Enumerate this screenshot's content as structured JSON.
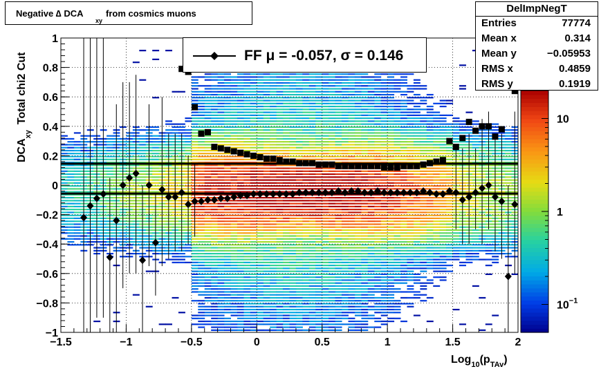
{
  "title": {
    "main": "Negative ∆ DCA",
    "subscript": "xy",
    "suffix": "from cosmics muons"
  },
  "stats_box": {
    "name": "DelImpNegT",
    "rows": [
      {
        "label": "Entries",
        "value": "77774"
      },
      {
        "label": "Mean x",
        "value": "0.314"
      },
      {
        "label": "Mean y",
        "value": "−0.05953"
      },
      {
        "label": "RMS x",
        "value": "0.4859"
      },
      {
        "label": "RMS y",
        "value": "0.1919"
      }
    ]
  },
  "legend": {
    "label": "FF μ = -0.057, σ =   0.146",
    "marker": "diamond"
  },
  "colors": {
    "frame": "#000000",
    "grid": "#000000",
    "marker": "#000000"
  },
  "chart_data": {
    "type": "heatmap",
    "xlabel": "Log",
    "xlabel_sub": "10",
    "xlabel_rest": "(p",
    "xlabel_sub2": "TAv",
    "xlabel_end": ")",
    "ylabel": "DCA",
    "ylabel_sub": "xy",
    "ylabel_suffix": "Total chi2 Cut",
    "xlim": [
      -1.5,
      2.0
    ],
    "ylim": [
      -1.0,
      1.0
    ],
    "xticks": [
      -1.5,
      -1,
      -0.5,
      0,
      0.5,
      1,
      1.5,
      2
    ],
    "xtick_labels": [
      "−1.5",
      "−1",
      "−0.5",
      "0",
      "0.5",
      "1",
      "1.5",
      "2"
    ],
    "yticks": [
      -1,
      -0.8,
      -0.6,
      -0.4,
      -0.2,
      0,
      0.2,
      0.4,
      0.6,
      0.8,
      1
    ],
    "ytick_labels": [
      "−1",
      "−0.8",
      "−0.6",
      "−0.4",
      "−0.2",
      "0",
      "0.2",
      "0.4",
      "0.6",
      "0.8",
      "1"
    ],
    "grid": true,
    "colorbar": {
      "scale": "log",
      "range": [
        0.05,
        20
      ],
      "ticks": [
        {
          "value": 10,
          "label": "10",
          "sup": ""
        },
        {
          "value": 1,
          "label": "1",
          "sup": ""
        },
        {
          "value": 0.1,
          "label": "10",
          "sup": "−1"
        }
      ]
    },
    "lines": [
      {
        "name": "sigma",
        "y": 0.146
      },
      {
        "name": "mu",
        "y": -0.057
      }
    ],
    "mean_profile": [
      {
        "x": -1.325,
        "y": -0.22
      },
      {
        "x": -1.275,
        "y": -0.14
      },
      {
        "x": -1.225,
        "y": -0.09
      },
      {
        "x": -1.175,
        "y": -0.06
      },
      {
        "x": -1.125,
        "y": -0.49
      },
      {
        "x": -1.075,
        "y": -0.24
      },
      {
        "x": -1.025,
        "y": 0.0
      },
      {
        "x": -0.975,
        "y": 0.05
      },
      {
        "x": -0.925,
        "y": 0.08
      },
      {
        "x": -0.875,
        "y": -0.51
      },
      {
        "x": -0.825,
        "y": 0.0
      },
      {
        "x": -0.775,
        "y": -0.39
      },
      {
        "x": -0.725,
        "y": -0.03
      },
      {
        "x": -0.675,
        "y": -0.08
      },
      {
        "x": -0.625,
        "y": -0.08
      },
      {
        "x": -0.575,
        "y": -0.05
      },
      {
        "x": -0.525,
        "y": -0.13
      },
      {
        "x": -0.475,
        "y": -0.11
      },
      {
        "x": -0.425,
        "y": -0.11
      },
      {
        "x": -0.375,
        "y": -0.1
      },
      {
        "x": -0.325,
        "y": -0.1
      },
      {
        "x": -0.275,
        "y": -0.09
      },
      {
        "x": -0.225,
        "y": -0.09
      },
      {
        "x": -0.175,
        "y": -0.08
      },
      {
        "x": -0.125,
        "y": -0.07
      },
      {
        "x": -0.075,
        "y": -0.07
      },
      {
        "x": -0.025,
        "y": -0.06
      },
      {
        "x": 0.025,
        "y": -0.06
      },
      {
        "x": 0.075,
        "y": -0.06
      },
      {
        "x": 0.125,
        "y": -0.06
      },
      {
        "x": 0.175,
        "y": -0.06
      },
      {
        "x": 0.225,
        "y": -0.06
      },
      {
        "x": 0.275,
        "y": -0.06
      },
      {
        "x": 0.325,
        "y": -0.05
      },
      {
        "x": 0.375,
        "y": -0.05
      },
      {
        "x": 0.425,
        "y": -0.05
      },
      {
        "x": 0.475,
        "y": -0.05
      },
      {
        "x": 0.525,
        "y": -0.05
      },
      {
        "x": 0.575,
        "y": -0.05
      },
      {
        "x": 0.625,
        "y": -0.04
      },
      {
        "x": 0.675,
        "y": -0.05
      },
      {
        "x": 0.725,
        "y": -0.04
      },
      {
        "x": 0.775,
        "y": -0.04
      },
      {
        "x": 0.825,
        "y": -0.05
      },
      {
        "x": 0.875,
        "y": -0.05
      },
      {
        "x": 0.925,
        "y": -0.04
      },
      {
        "x": 0.975,
        "y": -0.05
      },
      {
        "x": 1.025,
        "y": -0.05
      },
      {
        "x": 1.075,
        "y": -0.05
      },
      {
        "x": 1.125,
        "y": -0.05
      },
      {
        "x": 1.175,
        "y": -0.05
      },
      {
        "x": 1.225,
        "y": -0.05
      },
      {
        "x": 1.275,
        "y": -0.04
      },
      {
        "x": 1.325,
        "y": -0.05
      },
      {
        "x": 1.375,
        "y": -0.06
      },
      {
        "x": 1.425,
        "y": -0.06
      },
      {
        "x": 1.475,
        "y": -0.04
      },
      {
        "x": 1.525,
        "y": -0.05
      },
      {
        "x": 1.575,
        "y": -0.1
      },
      {
        "x": 1.625,
        "y": -0.08
      },
      {
        "x": 1.675,
        "y": -0.05
      },
      {
        "x": 1.725,
        "y": -0.02
      },
      {
        "x": 1.775,
        "y": 0.0
      },
      {
        "x": 1.825,
        "y": -0.08
      },
      {
        "x": 1.875,
        "y": -0.11
      },
      {
        "x": 1.925,
        "y": -0.62
      },
      {
        "x": 1.975,
        "y": -0.13
      }
    ],
    "error_bars": [
      {
        "x": -1.325,
        "lo": -1.0,
        "hi": 1.0
      },
      {
        "x": -1.275,
        "lo": -1.0,
        "hi": 1.0
      },
      {
        "x": -1.225,
        "lo": -0.9,
        "hi": 1.0
      },
      {
        "x": -1.175,
        "lo": -0.9,
        "hi": 1.0
      },
      {
        "x": -1.125,
        "lo": -1.0,
        "hi": 0.05
      },
      {
        "x": -1.075,
        "lo": -1.0,
        "hi": 0.55
      },
      {
        "x": -1.025,
        "lo": -0.7,
        "hi": 0.7
      },
      {
        "x": -0.975,
        "lo": -0.6,
        "hi": 0.7
      },
      {
        "x": -0.925,
        "lo": -0.6,
        "hi": 0.75
      },
      {
        "x": -0.875,
        "lo": -1.0,
        "hi": 0.0
      },
      {
        "x": -0.825,
        "lo": -0.55,
        "hi": 0.55
      },
      {
        "x": -0.775,
        "lo": -0.75,
        "hi": -0.05
      },
      {
        "x": -0.725,
        "lo": -0.55,
        "hi": 0.6
      },
      {
        "x": -0.675,
        "lo": -0.5,
        "hi": 0.35
      },
      {
        "x": -0.625,
        "lo": -0.45,
        "hi": 0.35
      },
      {
        "x": -0.575,
        "lo": -0.45,
        "hi": 0.35
      },
      {
        "x": -0.525,
        "lo": -0.4,
        "hi": 0.2
      },
      {
        "x": -0.475,
        "lo": -0.35,
        "hi": 0.15
      },
      {
        "x": 1.525,
        "lo": -0.3,
        "hi": 0.25
      },
      {
        "x": 1.575,
        "lo": -0.4,
        "hi": 0.25
      },
      {
        "x": 1.625,
        "lo": -0.4,
        "hi": 0.35
      },
      {
        "x": 1.675,
        "lo": -0.3,
        "hi": 0.25
      },
      {
        "x": 1.725,
        "lo": -0.4,
        "hi": 0.45
      },
      {
        "x": 1.775,
        "lo": -0.3,
        "hi": 0.5
      },
      {
        "x": 1.825,
        "lo": -0.45,
        "hi": 0.35
      },
      {
        "x": 1.875,
        "lo": -0.5,
        "hi": 0.35
      },
      {
        "x": 1.925,
        "lo": -1.0,
        "hi": 0.0
      },
      {
        "x": 1.975,
        "lo": -0.6,
        "hi": 0.5
      }
    ],
    "sigma_profile": [
      {
        "x": -0.575,
        "y": 0.79
      },
      {
        "x": -0.525,
        "y": 0.77
      },
      {
        "x": -0.475,
        "y": 0.53
      },
      {
        "x": -0.425,
        "y": 0.35
      },
      {
        "x": -0.375,
        "y": 0.36
      },
      {
        "x": -0.325,
        "y": 0.26
      },
      {
        "x": -0.275,
        "y": 0.25
      },
      {
        "x": -0.225,
        "y": 0.24
      },
      {
        "x": -0.175,
        "y": 0.23
      },
      {
        "x": -0.125,
        "y": 0.22
      },
      {
        "x": -0.075,
        "y": 0.21
      },
      {
        "x": -0.025,
        "y": 0.2
      },
      {
        "x": 0.025,
        "y": 0.19
      },
      {
        "x": 0.075,
        "y": 0.18
      },
      {
        "x": 0.125,
        "y": 0.18
      },
      {
        "x": 0.175,
        "y": 0.17
      },
      {
        "x": 0.225,
        "y": 0.16
      },
      {
        "x": 0.275,
        "y": 0.16
      },
      {
        "x": 0.325,
        "y": 0.15
      },
      {
        "x": 0.375,
        "y": 0.15
      },
      {
        "x": 0.425,
        "y": 0.15
      },
      {
        "x": 0.475,
        "y": 0.14
      },
      {
        "x": 0.525,
        "y": 0.14
      },
      {
        "x": 0.575,
        "y": 0.14
      },
      {
        "x": 0.625,
        "y": 0.13
      },
      {
        "x": 0.675,
        "y": 0.13
      },
      {
        "x": 0.725,
        "y": 0.13
      },
      {
        "x": 0.775,
        "y": 0.13
      },
      {
        "x": 0.825,
        "y": 0.13
      },
      {
        "x": 0.875,
        "y": 0.13
      },
      {
        "x": 0.925,
        "y": 0.13
      },
      {
        "x": 0.975,
        "y": 0.12
      },
      {
        "x": 1.025,
        "y": 0.12
      },
      {
        "x": 1.075,
        "y": 0.12
      },
      {
        "x": 1.125,
        "y": 0.13
      },
      {
        "x": 1.175,
        "y": 0.13
      },
      {
        "x": 1.225,
        "y": 0.13
      },
      {
        "x": 1.275,
        "y": 0.14
      },
      {
        "x": 1.325,
        "y": 0.15
      },
      {
        "x": 1.375,
        "y": 0.16
      },
      {
        "x": 1.425,
        "y": 0.17
      },
      {
        "x": 1.475,
        "y": 0.3
      },
      {
        "x": 1.525,
        "y": 0.26
      },
      {
        "x": 1.575,
        "y": 0.32
      },
      {
        "x": 1.625,
        "y": 0.43
      },
      {
        "x": 1.675,
        "y": 0.37
      },
      {
        "x": 1.725,
        "y": 0.4
      },
      {
        "x": 1.775,
        "y": 0.4
      },
      {
        "x": 1.825,
        "y": 0.33
      },
      {
        "x": 1.875,
        "y": 0.38
      },
      {
        "x": 1.975,
        "y": 0.64
      }
    ]
  }
}
